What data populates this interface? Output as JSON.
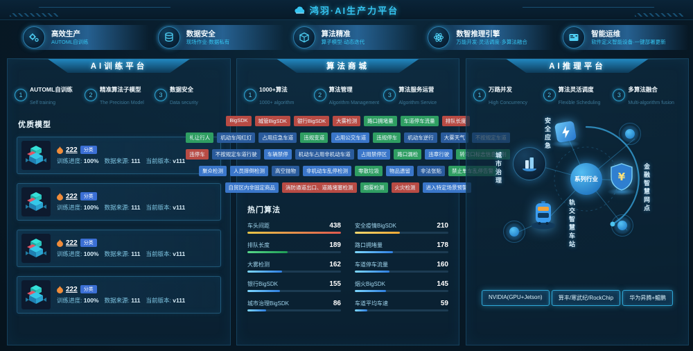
{
  "header": {
    "title": "鸿羽·AI生产力平台"
  },
  "features": [
    {
      "title": "高效生产",
      "subtitle": "AUTOML自训练"
    },
    {
      "title": "数据安全",
      "subtitle": "现场作业·数据私有"
    },
    {
      "title": "算法精准",
      "subtitle": "算子模型·动态迭代"
    },
    {
      "title": "数智推理引擎",
      "subtitle": "万能开发·灵活调度·多算法融合"
    },
    {
      "title": "智能运维",
      "subtitle": "软件定义智能设备·一键部署更新"
    }
  ],
  "training_panel": {
    "title": "AI训练平台",
    "steps": [
      {
        "num": "1",
        "label": "AUTOML自训练",
        "sub": "Self training"
      },
      {
        "num": "2",
        "label": "精准算法子模型",
        "sub": "The Precision Model"
      },
      {
        "num": "3",
        "label": "数据安全",
        "sub": "Data security"
      }
    ],
    "section_title": "优质模型",
    "models": [
      {
        "name": "222",
        "badge": "分类",
        "progress_label": "训练进度:",
        "progress_value": "100%",
        "source_label": "数据来源:",
        "source_value": "111",
        "version_label": "当前版本:",
        "version_value": "v111"
      },
      {
        "name": "222",
        "badge": "分类",
        "progress_label": "训练进度:",
        "progress_value": "100%",
        "source_label": "数据来源:",
        "source_value": "111",
        "version_label": "当前版本:",
        "version_value": "v111"
      },
      {
        "name": "222",
        "badge": "分类",
        "progress_label": "训练进度:",
        "progress_value": "100%",
        "source_label": "数据来源:",
        "source_value": "111",
        "version_label": "当前版本:",
        "version_value": "v111"
      },
      {
        "name": "222",
        "badge": "分类",
        "progress_label": "训练进度:",
        "progress_value": "100%",
        "source_label": "数据来源:",
        "source_value": "111",
        "version_label": "当前版本:",
        "version_value": "v111"
      }
    ]
  },
  "market_panel": {
    "title": "算法商城",
    "steps": [
      {
        "num": "1",
        "label": "1000+算法",
        "sub": "1000+ algorithm"
      },
      {
        "num": "2",
        "label": "算法管理",
        "sub": "Algorithm Management"
      },
      {
        "num": "3",
        "label": "算法服务运营",
        "sub": "Algorithm Service"
      }
    ],
    "tag_rows": [
      [
        {
          "label": "BigSDK",
          "color": "red"
        },
        {
          "label": "城管BigSDK",
          "color": "red"
        },
        {
          "label": "银行BigSDK",
          "color": "red"
        },
        {
          "label": "大雾检测",
          "color": "red"
        },
        {
          "label": "路口拥堵量",
          "color": "green"
        },
        {
          "label": "车道停车流量",
          "color": "green"
        },
        {
          "label": "排队长度",
          "color": "red"
        }
      ],
      [
        {
          "label": "礼让行人",
          "color": "green"
        },
        {
          "label": "机动车闯红灯",
          "color": "navy"
        },
        {
          "label": "占用应急车道",
          "color": "navy"
        },
        {
          "label": "违规变道",
          "color": "green"
        },
        {
          "label": "占用公交车道",
          "color": "blue"
        },
        {
          "label": "违规停车",
          "color": "green"
        },
        {
          "label": "机动车逆行",
          "color": "navy"
        },
        {
          "label": "大雾天气",
          "color": "navy"
        },
        {
          "label": "不按规定车道",
          "color": "blue"
        }
      ],
      [
        {
          "label": "违停车",
          "color": "red"
        },
        {
          "label": "不按规定车道行驶",
          "color": "navy"
        },
        {
          "label": "车辆禁停",
          "color": "blue"
        },
        {
          "label": "机动车占用非机动车道",
          "color": "navy"
        },
        {
          "label": "占用禁停区",
          "color": "blue"
        },
        {
          "label": "路口漏检",
          "color": "green"
        },
        {
          "label": "违章行驶",
          "color": "blue"
        },
        {
          "label": "转弯口标志信息识别",
          "color": "green"
        }
      ],
      [
        {
          "label": "聚众检测",
          "color": "blue"
        },
        {
          "label": "人员摔倒检测",
          "color": "blue"
        },
        {
          "label": "高空抛物",
          "color": "navy"
        },
        {
          "label": "非机动车乱停检测",
          "color": "blue"
        },
        {
          "label": "零散垃圾",
          "color": "green"
        },
        {
          "label": "物品遗留",
          "color": "blue"
        },
        {
          "label": "非法张贴",
          "color": "navy"
        },
        {
          "label": "禁止单车乱停告警",
          "color": "green"
        }
      ],
      [
        {
          "label": "自贸区内非固定商品",
          "color": "blue"
        },
        {
          "label": "消防通道出口、道路堵塞检测",
          "color": "red"
        },
        {
          "label": "烟雾检测",
          "color": "green"
        },
        {
          "label": "火灾检测",
          "color": "red"
        },
        {
          "label": "进入特定场景预警",
          "color": "blue"
        }
      ]
    ],
    "hot_title": "热门算法"
  },
  "chart_data": {
    "type": "bar",
    "title": "热门算法",
    "xlim": [
      0,
      438
    ],
    "columns": [
      {
        "items": [
          {
            "label": "车头间距",
            "value": 438,
            "color": "red"
          },
          {
            "label": "排队长度",
            "value": 189,
            "color": "green"
          },
          {
            "label": "大雾检测",
            "value": 162,
            "color": "blue"
          },
          {
            "label": "银行BigSDK",
            "value": 155,
            "color": "blue"
          },
          {
            "label": "城市治理BigSDK",
            "value": 86,
            "color": "blue"
          }
        ]
      },
      {
        "items": [
          {
            "label": "安全疫情BigSDK",
            "value": 210,
            "color": "amber"
          },
          {
            "label": "路口拥堵量",
            "value": 178,
            "color": "blue"
          },
          {
            "label": "车道停车流量",
            "value": 160,
            "color": "blue"
          },
          {
            "label": "烟火BigSDK",
            "value": 145,
            "color": "blue"
          },
          {
            "label": "车道平均车速",
            "value": 59,
            "color": "blue"
          }
        ]
      }
    ]
  },
  "inference_panel": {
    "title": "AI推理平台",
    "steps": [
      {
        "num": "1",
        "label": "万路并发",
        "sub": "High Concurrency"
      },
      {
        "num": "2",
        "label": "算法灵活调度",
        "sub": "Flexible Scheduling"
      },
      {
        "num": "3",
        "label": "多算法融合",
        "sub": "Multi-algorithm fusion"
      }
    ],
    "diagram": {
      "center": "系列行业",
      "nodes": [
        {
          "label": "安全应急"
        },
        {
          "label": "城市治理"
        },
        {
          "label": "金融智慧网点"
        },
        {
          "label": "轨交智慧车站"
        }
      ]
    },
    "buttons": [
      {
        "label": "NVIDIA(GPU+Jetson)"
      },
      {
        "label": "算丰/寒武纪/RockChip"
      },
      {
        "label": "华为昇腾+鲲鹏"
      }
    ]
  },
  "palette": {
    "accent": "#2fc3ee",
    "tag_red": "#b84b44",
    "tag_green": "#2f9e62",
    "tag_blue": "#3a76c9",
    "tag_navy": "#2a5b9c",
    "bar_red": "#e05a4e",
    "bar_green": "#1f9d55",
    "bar_amber": "#f0a835",
    "bar_blue": "#2f7fe0",
    "badge_blue": "#3b6fd4"
  }
}
